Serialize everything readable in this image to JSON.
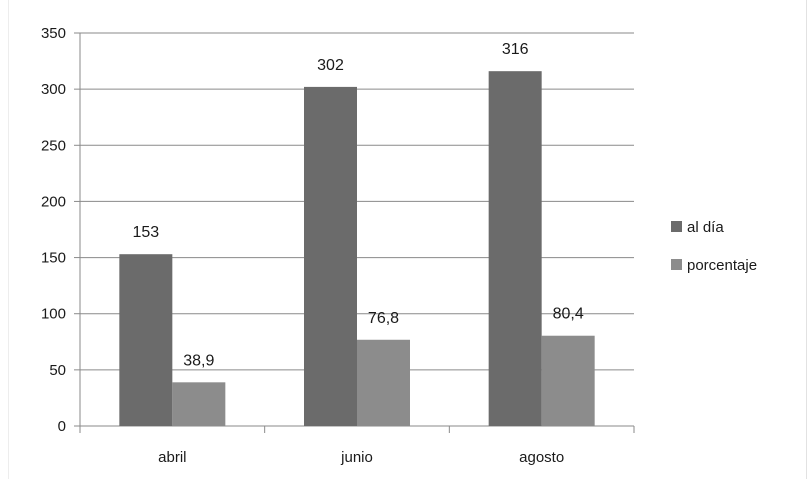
{
  "chart_data": {
    "type": "bar",
    "title": "",
    "xlabel": "",
    "ylabel": "",
    "categories": [
      "abril",
      "junio",
      "agosto"
    ],
    "series": [
      {
        "name": "al día",
        "values": [
          153,
          302,
          316
        ],
        "labels": [
          "153",
          "302",
          "316"
        ],
        "color": "#6b6b6b"
      },
      {
        "name": "porcentaje",
        "values": [
          38.9,
          76.8,
          80.4
        ],
        "labels": [
          "38,9",
          "76,8",
          "80,4"
        ],
        "color": "#8c8c8c"
      }
    ],
    "ylim": [
      0,
      350
    ],
    "yticks": [
      0,
      50,
      100,
      150,
      200,
      250,
      300,
      350
    ],
    "grid": true,
    "legend_position": "right"
  }
}
